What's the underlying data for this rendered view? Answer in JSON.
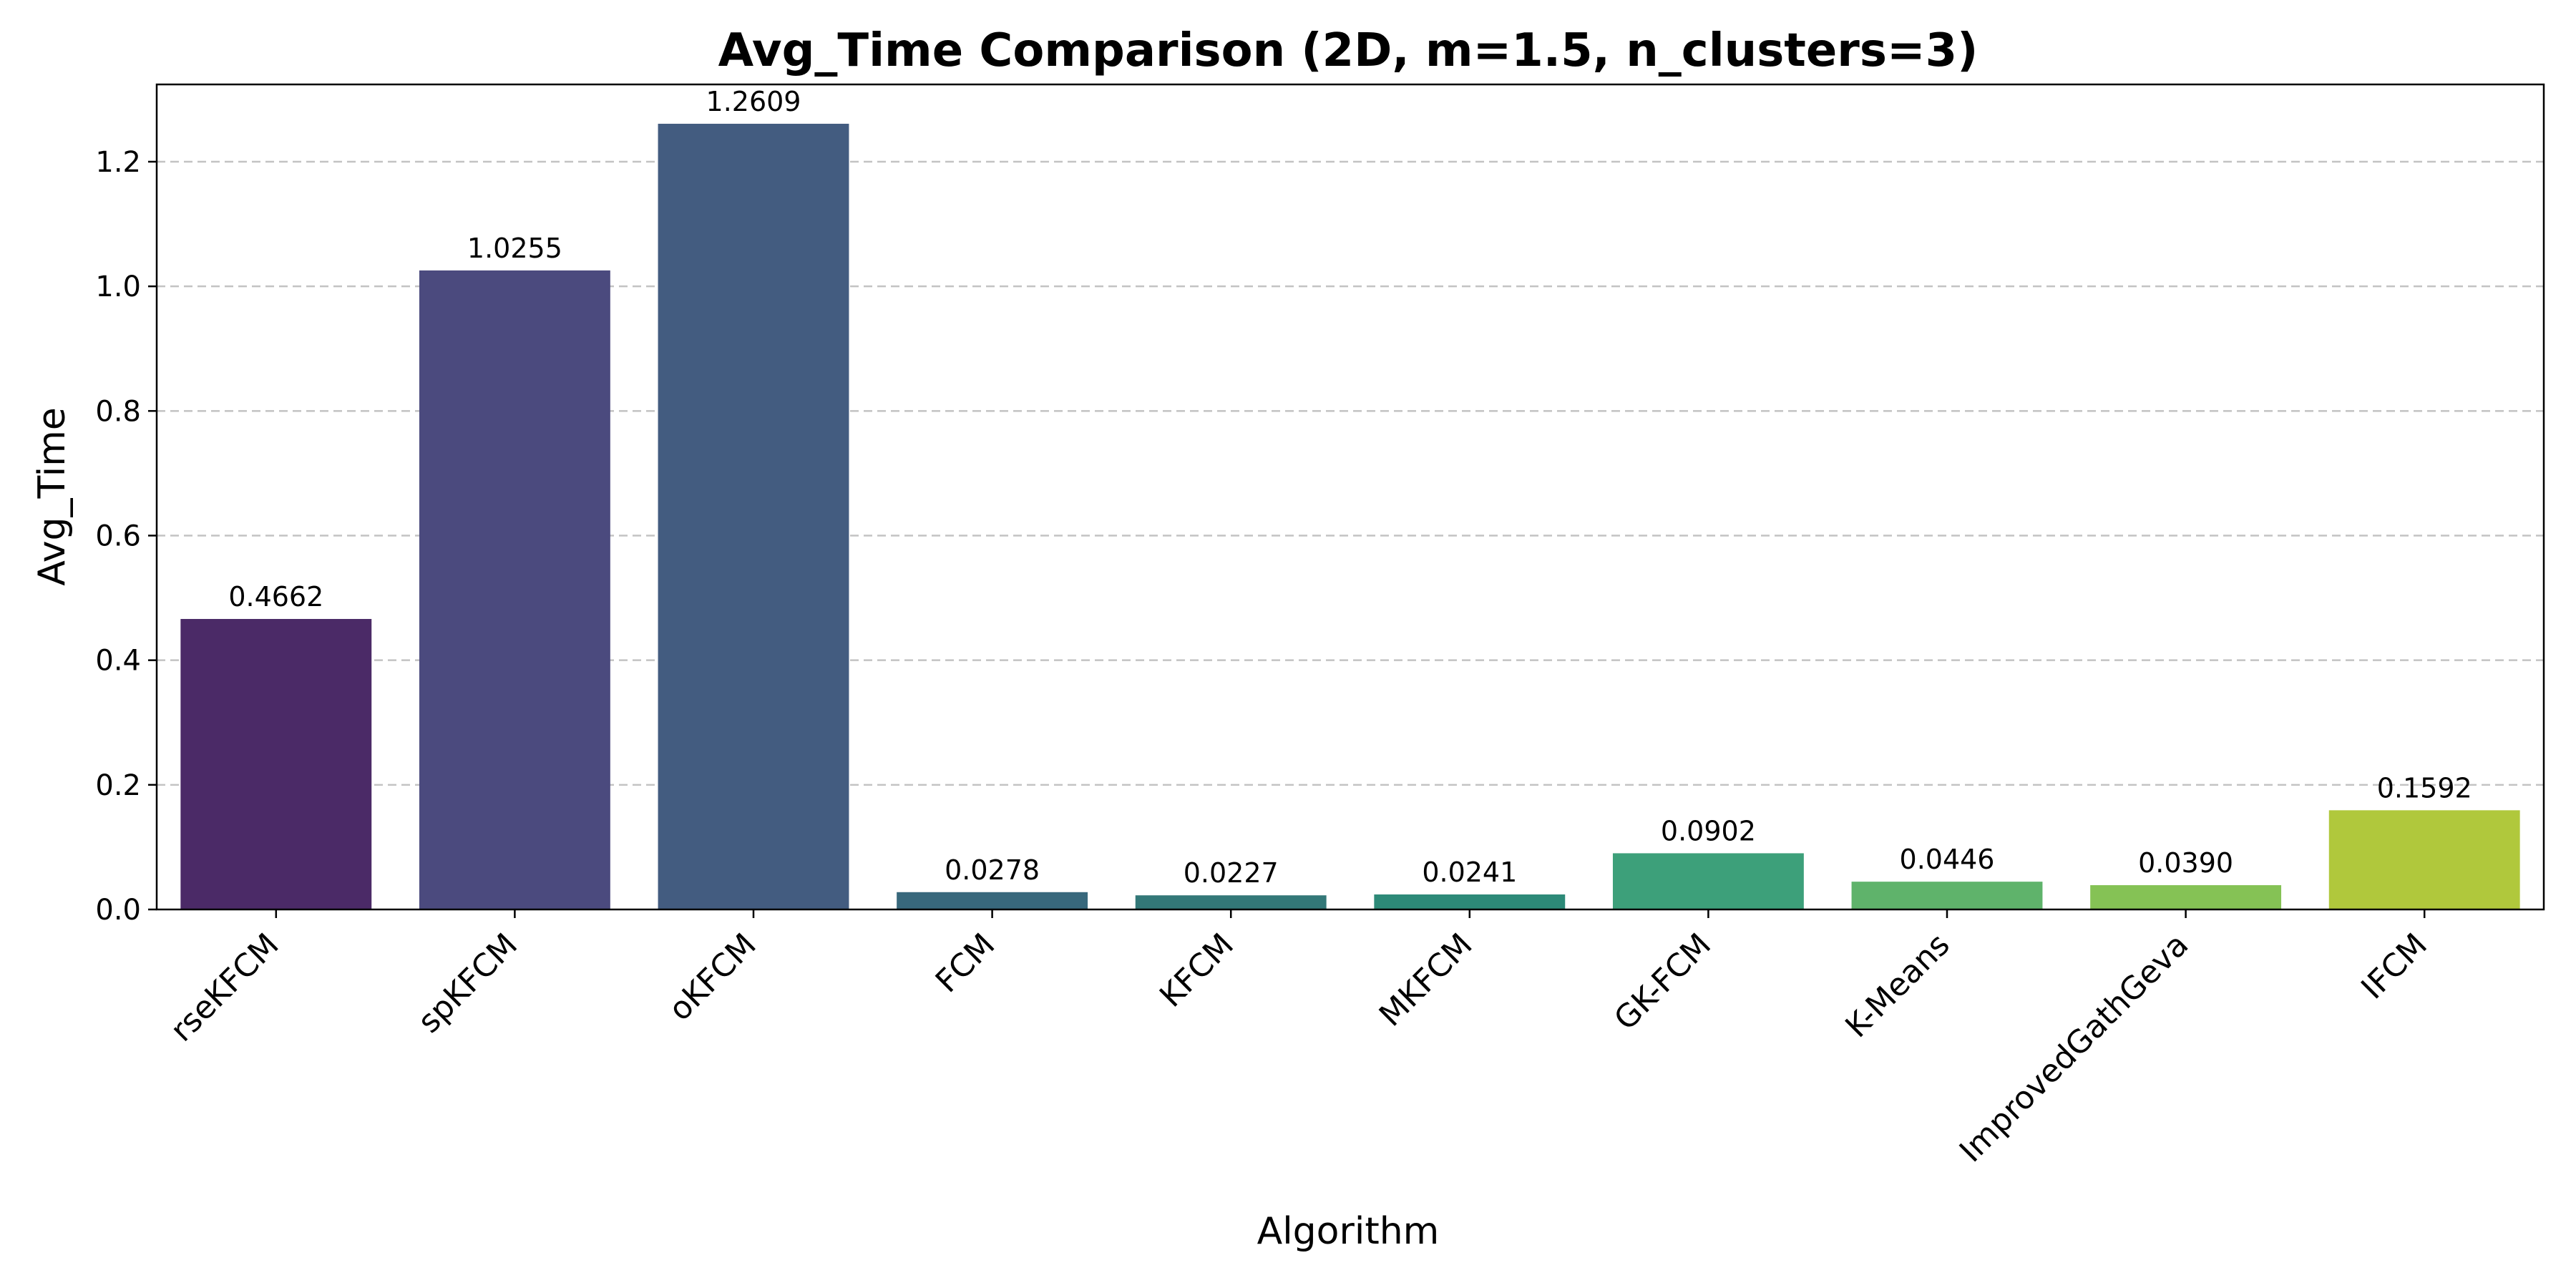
{
  "chart_data": {
    "type": "bar",
    "title": "Avg_Time Comparison (2D, m=1.5, n_clusters=3)",
    "xlabel": "Algorithm",
    "ylabel": "Avg_Time",
    "categories": [
      "rseKFCM",
      "spKFCM",
      "oKFCM",
      "FCM",
      "KFCM",
      "MKFCM",
      "GK-FCM",
      "K-Means",
      "ImprovedGathGeva",
      "IFCM"
    ],
    "values": [
      0.4662,
      1.0255,
      1.2609,
      0.0278,
      0.0227,
      0.0241,
      0.0902,
      0.0446,
      0.039,
      0.1592
    ],
    "value_labels": [
      "0.4662",
      "1.0255",
      "1.2609",
      "0.0278",
      "0.0227",
      "0.0241",
      "0.0902",
      "0.0446",
      "0.0390",
      "0.1592"
    ],
    "colors": [
      "#4b2a67",
      "#4b4a7e",
      "#435c80",
      "#38687c",
      "#337878",
      "#2d8a78",
      "#3da07a",
      "#5fb36b",
      "#85c255",
      "#b0c83c"
    ],
    "ylim": [
      0,
      1.324
    ],
    "yticks": [
      0.0,
      0.2,
      0.4,
      0.6,
      0.8,
      1.0,
      1.2
    ],
    "ytick_labels": [
      "0.0",
      "0.2",
      "0.4",
      "0.6",
      "0.8",
      "1.0",
      "1.2"
    ],
    "grid": "y-dashed",
    "legend": "none"
  }
}
